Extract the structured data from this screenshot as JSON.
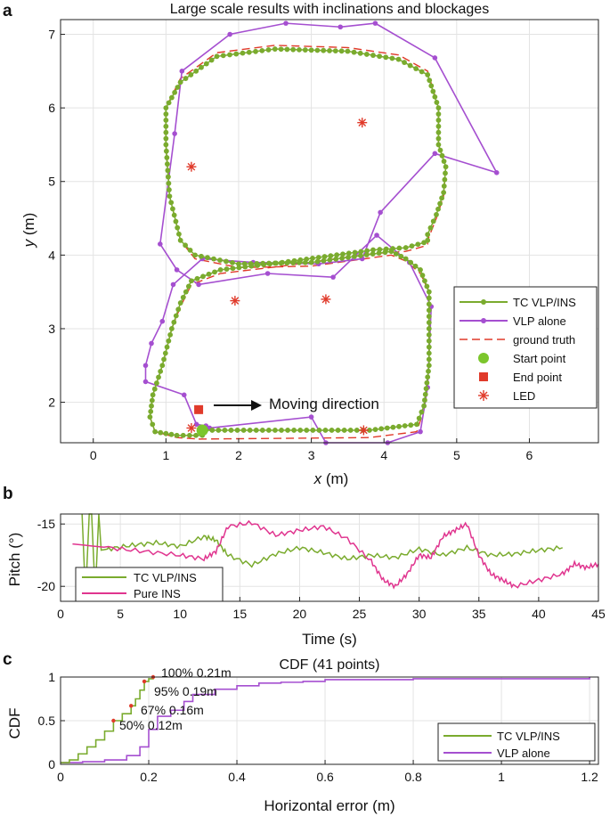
{
  "panel_labels": {
    "a": "a",
    "b": "b",
    "c": "c"
  },
  "colors": {
    "tc": "#7aab2e",
    "vlp": "#a54fd0",
    "truth": "#e03a2a",
    "pins": "#e0358f",
    "grid": "#e3e3e3",
    "axis": "#222222"
  },
  "chart_data": [
    {
      "type": "line",
      "title": "Large scale results with inclinations and blockages",
      "xlabel": "x (m)",
      "ylabel": "y (m)",
      "xlabel_var": "x",
      "ylabel_var": "y",
      "unit": " (m)",
      "xlim": [
        -0.45,
        6.95
      ],
      "ylim": [
        1.45,
        7.2
      ],
      "xticks": [
        0,
        1,
        2,
        3,
        4,
        5,
        6
      ],
      "yticks": [
        2,
        3,
        4,
        5,
        6,
        7
      ],
      "grid": true,
      "legend_position": "right",
      "annotation": "Moving direction",
      "series": [
        {
          "name": "ground truth",
          "style": "dashed",
          "x": [
            1.45,
            3.8,
            4.45,
            4.55,
            4.62,
            4.62,
            4.5,
            4.3,
            4.1,
            3.0,
            2.0,
            1.4,
            1.2,
            1.05,
            1.0,
            1.0,
            1.2,
            1.7,
            2.5,
            3.5,
            4.2,
            4.6,
            4.75,
            4.75,
            4.85,
            4.82,
            4.72,
            4.6,
            4.6,
            4.55,
            4.3,
            3.85,
            2.6,
            1.75,
            1.35,
            1.2,
            1.08,
            0.95,
            0.82,
            0.78,
            0.85,
            1.15,
            1.45
          ],
          "y": [
            1.5,
            1.52,
            1.6,
            1.9,
            2.5,
            3.5,
            3.75,
            3.92,
            4.0,
            3.85,
            3.83,
            3.95,
            4.2,
            4.8,
            5.5,
            6.0,
            6.4,
            6.75,
            6.85,
            6.82,
            6.72,
            6.5,
            6.0,
            5.5,
            5.2,
            4.8,
            4.5,
            4.2,
            4.15,
            4.12,
            4.05,
            4.02,
            3.85,
            3.75,
            3.6,
            3.3,
            3.0,
            2.5,
            2.1,
            1.8,
            1.6,
            1.52,
            1.5
          ]
        },
        {
          "name": "TC VLP/INS",
          "style": "markers-line",
          "x": [
            1.55,
            3.8,
            4.45,
            4.55,
            4.62,
            4.62,
            4.5,
            4.3,
            4.1,
            3.0,
            2.0,
            1.4,
            1.2,
            1.05,
            1.0,
            1.0,
            1.2,
            1.7,
            2.5,
            3.5,
            4.2,
            4.6,
            4.75,
            4.75,
            4.85,
            4.82,
            4.72,
            4.6,
            4.6,
            4.55,
            4.3,
            3.85,
            2.6,
            1.75,
            1.35,
            1.2,
            1.08,
            0.95,
            0.82,
            0.78,
            0.85,
            1.15,
            1.5
          ],
          "y": [
            1.62,
            1.62,
            1.7,
            1.95,
            2.5,
            3.5,
            3.8,
            3.95,
            4.05,
            3.9,
            3.88,
            4.0,
            4.2,
            4.8,
            5.5,
            6.0,
            6.35,
            6.7,
            6.8,
            6.77,
            6.66,
            6.45,
            6.0,
            5.5,
            5.2,
            4.85,
            4.55,
            4.28,
            4.2,
            4.17,
            4.1,
            4.07,
            3.9,
            3.8,
            3.65,
            3.35,
            3.0,
            2.5,
            2.1,
            1.8,
            1.6,
            1.55,
            1.55
          ]
        },
        {
          "name": "VLP alone",
          "style": "markers-line",
          "x": [
            1.6,
            3.0,
            3.2,
            4.05,
            4.5,
            4.6,
            4.65,
            4.35,
            3.9,
            3.3,
            2.4,
            1.45,
            1.15,
            0.92,
            1.12,
            1.22,
            1.88,
            2.65,
            3.4,
            3.88,
            4.7,
            5.55,
            4.7,
            3.95,
            3.7,
            3.1,
            2.2,
            1.5,
            1.1,
            0.95,
            0.8,
            0.72,
            0.72,
            1.25,
            1.42,
            1.55
          ],
          "y": [
            1.65,
            1.8,
            1.45,
            1.45,
            1.6,
            2.2,
            3.3,
            3.9,
            4.27,
            3.7,
            3.75,
            3.6,
            3.8,
            4.15,
            5.65,
            6.5,
            7.0,
            7.15,
            7.1,
            7.15,
            6.68,
            5.12,
            5.38,
            4.58,
            3.95,
            3.88,
            3.9,
            3.95,
            3.6,
            3.1,
            2.8,
            2.5,
            2.28,
            2.1,
            1.7,
            1.68
          ]
        },
        {
          "name": "Start point",
          "style": "marker",
          "x": [
            1.5
          ],
          "y": [
            1.62
          ]
        },
        {
          "name": "End point",
          "style": "marker",
          "x": [
            1.45
          ],
          "y": [
            1.9
          ]
        },
        {
          "name": "LED",
          "style": "marker",
          "x": [
            3.7,
            1.35,
            1.95,
            3.2,
            1.35,
            3.72
          ],
          "y": [
            5.8,
            5.2,
            3.38,
            3.4,
            1.65,
            1.62
          ]
        }
      ]
    },
    {
      "type": "line",
      "title": "",
      "xlabel": "Time (s)",
      "ylabel": "Pitch (°)",
      "xlim": [
        0,
        45
      ],
      "ylim": [
        -21.2,
        -14.2
      ],
      "xticks": [
        0,
        5,
        10,
        15,
        20,
        25,
        30,
        35,
        40,
        45
      ],
      "yticks": [
        -15,
        -20
      ],
      "grid": true,
      "legend_position": "bottom-left",
      "series": [
        {
          "name": "TC VLP/INS",
          "x": [
            1.8,
            2.0,
            2.2,
            2.4,
            2.6,
            2.8,
            3.0,
            3.2,
            3.4,
            4,
            6,
            8,
            10,
            12,
            13,
            14,
            16,
            18,
            20,
            22,
            24,
            26,
            28,
            30,
            32,
            34,
            36,
            38,
            40,
            42
          ],
          "y": [
            -14.2,
            -18.8,
            -18.5,
            -14.2,
            -14.2,
            -18.5,
            -18.5,
            -14.2,
            -17.1,
            -17.0,
            -16.7,
            -16.5,
            -16.8,
            -16.0,
            -16.3,
            -17.5,
            -18.3,
            -17.4,
            -16.9,
            -17.3,
            -17.8,
            -17.5,
            -17.7,
            -17.0,
            -17.5,
            -16.9,
            -17.5,
            -17.4,
            -17.1,
            -16.9
          ]
        },
        {
          "name": "Pure INS",
          "x": [
            1,
            4,
            7,
            10,
            12,
            13,
            14,
            16,
            18,
            20,
            22,
            24,
            26,
            27,
            28,
            29,
            30,
            31,
            32,
            33,
            34,
            35,
            36,
            37,
            38,
            40,
            42,
            43,
            44,
            45
          ],
          "y": [
            -16.6,
            -16.9,
            -17.2,
            -17.5,
            -17.8,
            -17.2,
            -15.2,
            -14.9,
            -15.9,
            -15.5,
            -15.2,
            -16.2,
            -18.0,
            -19.5,
            -20.0,
            -19.0,
            -17.5,
            -17.7,
            -16.0,
            -15.5,
            -15.0,
            -17.5,
            -19.0,
            -19.5,
            -20.0,
            -19.5,
            -19.0,
            -18.2,
            -18.5,
            -18.2
          ]
        }
      ]
    },
    {
      "type": "line",
      "title": "CDF (41 points)",
      "xlabel": "Horizontal error (m)",
      "ylabel": "CDF",
      "xlim": [
        0,
        1.22
      ],
      "ylim": [
        0,
        1
      ],
      "xticks": [
        0,
        0.2,
        0.4,
        0.6,
        0.8,
        1,
        1.2
      ],
      "yticks": [
        0,
        0.5,
        1
      ],
      "grid": true,
      "legend_position": "right",
      "annotations": [
        "100% 0.21m",
        "95% 0.19m",
        "67% 0.16m",
        "50% 0.12m"
      ],
      "annotation_points": [
        {
          "x": 0.21,
          "y": 1.0
        },
        {
          "x": 0.19,
          "y": 0.95
        },
        {
          "x": 0.16,
          "y": 0.67
        },
        {
          "x": 0.12,
          "y": 0.5
        }
      ],
      "series": [
        {
          "name": "TC VLP/INS",
          "x": [
            0,
            0.02,
            0.04,
            0.06,
            0.08,
            0.1,
            0.12,
            0.14,
            0.16,
            0.17,
            0.18,
            0.19,
            0.2,
            0.21
          ],
          "y": [
            0.02,
            0.05,
            0.12,
            0.2,
            0.28,
            0.38,
            0.5,
            0.58,
            0.67,
            0.75,
            0.85,
            0.95,
            0.98,
            1.0
          ]
        },
        {
          "name": "VLP alone",
          "x": [
            0,
            0.05,
            0.1,
            0.15,
            0.18,
            0.2,
            0.22,
            0.25,
            0.28,
            0.3,
            0.35,
            0.4,
            0.45,
            0.5,
            0.55,
            0.6,
            0.8,
            1.0,
            1.2
          ],
          "y": [
            0.02,
            0.03,
            0.05,
            0.1,
            0.2,
            0.4,
            0.55,
            0.62,
            0.72,
            0.8,
            0.86,
            0.9,
            0.93,
            0.94,
            0.95,
            0.97,
            0.98,
            0.98,
            1.0
          ]
        }
      ]
    }
  ]
}
